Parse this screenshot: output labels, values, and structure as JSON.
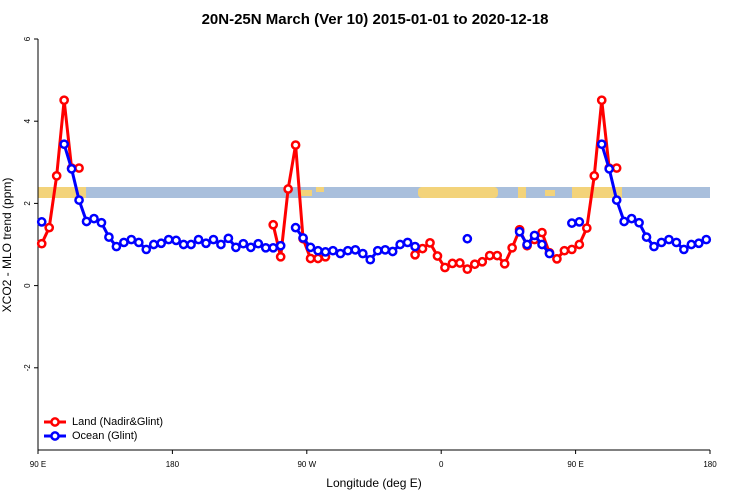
{
  "chart_data": {
    "type": "line",
    "title": "20N-25N March (Ver 10)   2015-01-01 to 2020-12-18",
    "x_label": "Longitude (deg E)",
    "y_label": "XCO2 - MLO trend (ppm)",
    "x": [
      92.5,
      97.5,
      102.5,
      107.5,
      112.5,
      117.5,
      122.5,
      127.5,
      132.5,
      137.5,
      142.5,
      147.5,
      152.5,
      157.5,
      162.5,
      167.5,
      172.5,
      177.5,
      182.5,
      187.5,
      192.5,
      197.5,
      202.5,
      207.5,
      212.5,
      217.5,
      222.5,
      227.5,
      232.5,
      237.5,
      242.5,
      247.5,
      252.5,
      257.5,
      262.5,
      267.5,
      272.5,
      277.5,
      282.5,
      287.5,
      292.5,
      297.5,
      302.5,
      307.5,
      312.5,
      317.5,
      322.5,
      327.5,
      332.5,
      337.5,
      342.5,
      347.5,
      352.5,
      357.5,
      362.5,
      367.5,
      372.5,
      377.5,
      382.5,
      387.5,
      392.5,
      397.5,
      402.5,
      407.5,
      412.5,
      417.5,
      422.5,
      427.5,
      432.5,
      437.5,
      442.5,
      447.5,
      452.5,
      457.5,
      462.5,
      467.5,
      472.5,
      477.5,
      482.5,
      487.5,
      492.5,
      497.5,
      502.5,
      507.5,
      512.5,
      517.5,
      522.5,
      527.5,
      532.5,
      537.5
    ],
    "xlim": [
      90,
      540
    ],
    "xticks": [
      {
        "value": 90,
        "label": "90 E"
      },
      180,
      {
        "value": 270,
        "label": "90 W"
      },
      {
        "value": 360,
        "label": "0"
      },
      {
        "value": 450,
        "label": "90 E"
      },
      {
        "value": 540,
        "label": "180"
      }
    ],
    "ylim": [
      -4,
      6
    ],
    "yticks": [
      -2,
      0,
      2,
      4,
      6
    ],
    "legend": "bottom-left",
    "series": [
      {
        "name": "Land (Nadir&Glint)",
        "color": "#ff0000",
        "values": [
          1.02,
          1.41,
          2.67,
          4.51,
          2.86,
          2.86,
          null,
          null,
          null,
          null,
          null,
          null,
          null,
          null,
          null,
          null,
          null,
          null,
          null,
          null,
          null,
          null,
          null,
          null,
          null,
          null,
          null,
          null,
          null,
          null,
          null,
          1.48,
          0.7,
          2.35,
          3.42,
          1.14,
          0.66,
          0.66,
          0.7,
          null,
          null,
          null,
          null,
          null,
          null,
          null,
          null,
          null,
          null,
          null,
          0.75,
          0.9,
          1.04,
          0.72,
          0.44,
          0.54,
          0.55,
          0.4,
          0.52,
          0.58,
          0.73,
          0.73,
          0.53,
          0.92,
          1.36,
          0.97,
          1.12,
          1.29,
          0.8,
          0.65,
          0.85,
          0.88,
          1.0,
          1.4,
          2.67,
          4.51,
          2.86,
          2.86,
          null,
          null,
          null,
          null,
          null,
          null,
          null,
          null,
          null,
          null,
          null,
          null
        ]
      },
      {
        "name": "Ocean (Glint)",
        "color": "#0000ff",
        "values": [
          1.55,
          null,
          null,
          3.44,
          2.84,
          2.08,
          1.56,
          1.63,
          1.53,
          1.18,
          0.95,
          1.05,
          1.12,
          1.05,
          0.88,
          1.0,
          1.03,
          1.12,
          1.1,
          1.0,
          1.0,
          1.12,
          1.03,
          1.12,
          1.0,
          1.15,
          0.93,
          1.02,
          0.93,
          1.02,
          0.92,
          0.92,
          0.97,
          null,
          1.41,
          1.16,
          0.93,
          0.85,
          0.82,
          0.85,
          0.78,
          0.85,
          0.87,
          0.78,
          0.63,
          0.85,
          0.87,
          0.83,
          1.0,
          1.05,
          0.95,
          null,
          null,
          null,
          null,
          null,
          null,
          1.14,
          null,
          null,
          null,
          null,
          null,
          null,
          1.31,
          1.0,
          1.22,
          1.0,
          0.78,
          null,
          null,
          1.52,
          1.55,
          null,
          null,
          3.44,
          2.84,
          2.08,
          1.56,
          1.63,
          1.53,
          1.18,
          0.95,
          1.05,
          1.12,
          1.05,
          0.88,
          1.0,
          1.03,
          1.12
        ]
      }
    ]
  }
}
